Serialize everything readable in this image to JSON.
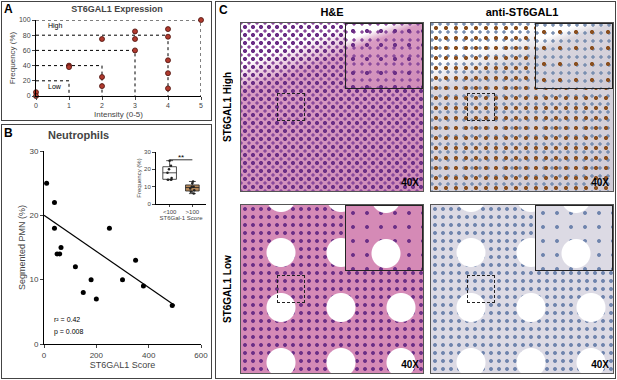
{
  "chart_data": [
    {
      "panel": "A",
      "type": "scatter",
      "title": "ST6GAL1 Expression",
      "x_label": "Intensity (0-5)",
      "y_label": "Frequency (%)",
      "x": [
        0,
        0,
        1,
        1,
        2,
        2,
        2,
        3,
        3,
        3,
        4,
        4,
        4,
        4,
        4,
        5
      ],
      "values": [
        5,
        0,
        40,
        38,
        75,
        25,
        13,
        85,
        75,
        60,
        88,
        78,
        47,
        30,
        10,
        100
      ],
      "color": "#b03a2e",
      "marker": "circle",
      "xlim": [
        0,
        5
      ],
      "xticks": [
        0,
        1,
        2,
        3,
        4,
        5
      ],
      "ylim": [
        0,
        100
      ],
      "yticks": [
        0,
        20,
        40,
        60,
        80,
        100
      ],
      "steps": {
        "x": [
          1,
          2,
          3,
          4,
          5
        ],
        "y": [
          20,
          40,
          60,
          80,
          100
        ]
      },
      "line_style": "dotted",
      "annotations": [
        {
          "text": "High",
          "x": 0.3,
          "y": 92
        },
        {
          "text": "Low",
          "x": 0.3,
          "y": 13
        }
      ]
    },
    {
      "panel": "B",
      "type": "scatter",
      "title": "Neutrophils",
      "x_label": "ST6GAL1 Score",
      "y_label": "Segmented PMN (%)",
      "x": [
        10,
        40,
        40,
        50,
        60,
        65,
        120,
        150,
        180,
        200,
        250,
        300,
        350,
        380,
        490
      ],
      "values": [
        25,
        22,
        18,
        14,
        14,
        15,
        12,
        8,
        10,
        7,
        18,
        10,
        13,
        9,
        6
      ],
      "color": "#000000",
      "marker": "circle",
      "xlim": [
        0,
        600
      ],
      "xticks": [
        0,
        200,
        400,
        600
      ],
      "ylim": [
        0,
        30
      ],
      "yticks": [
        0,
        10,
        20,
        30
      ],
      "fit": {
        "x": [
          0,
          500
        ],
        "y": [
          20,
          6
        ]
      },
      "annotations": [
        {
          "text": "r² = 0.42"
        },
        {
          "text": "p = 0.008"
        }
      ]
    },
    {
      "type": "box",
      "x_label": "ST6Gal-1 Score",
      "y_label": "Frequency (%)",
      "categories": [
        "<100",
        ">100"
      ],
      "values": [
        [
          25,
          22,
          20,
          18,
          15,
          14,
          14
        ],
        [
          13,
          12,
          10,
          10,
          9,
          8,
          7,
          6
        ]
      ],
      "colors": [
        "#ffffff",
        "#b5885a"
      ],
      "ylim": [
        0,
        30
      ],
      "yticks": [
        0,
        10,
        20,
        30
      ],
      "annotations": [
        {
          "text": "**",
          "x": 0.5,
          "y": 27
        }
      ]
    }
  ],
  "images": {
    "panel": "C",
    "columns": [
      "H&E",
      "anti-ST6GAL1"
    ],
    "rows": [
      "ST6GAL1 High",
      "ST6GAL1 Low"
    ],
    "magnification": "40X"
  }
}
